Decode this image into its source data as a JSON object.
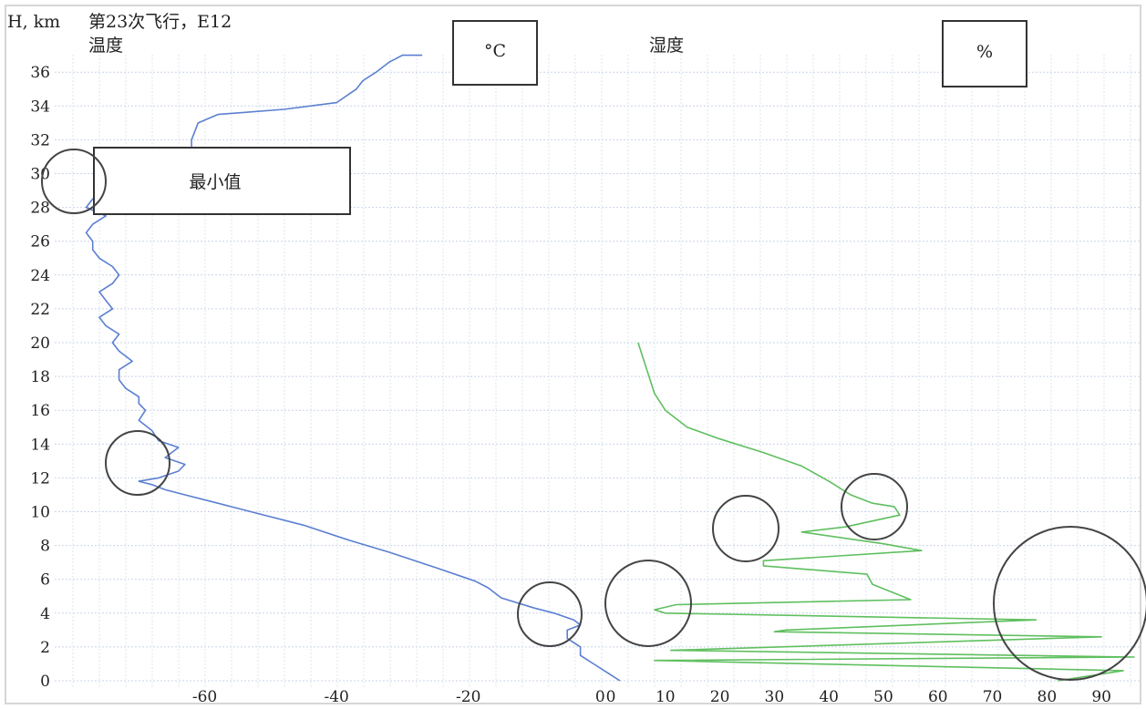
{
  "chart_data": {
    "type": "line",
    "title": "第23次飞行，E12",
    "ylabel": "H, km",
    "ylim": [
      0,
      37
    ],
    "yticks": [
      0,
      2,
      4,
      6,
      8,
      10,
      12,
      14,
      16,
      18,
      20,
      22,
      24,
      26,
      28,
      30,
      32,
      34,
      36
    ],
    "grid": true,
    "panels": [
      {
        "name": "温度",
        "unit_label": "°C",
        "xlim": [
          -80,
          3
        ],
        "xticks": [
          -60,
          -40,
          -20,
          0
        ],
        "series": [
          {
            "color": "#5b7fd1",
            "x": [
              3,
              1,
              -1,
              -3,
              -3,
              -5,
              -5,
              -3,
              -4,
              -7,
              -10,
              -15,
              -17,
              -19,
              -25,
              -32,
              -38,
              -45,
              -52,
              -58,
              -63,
              -66,
              -68,
              -70,
              -67,
              -64,
              -63,
              -66,
              -64,
              -67,
              -68,
              -70,
              -69,
              -70,
              -70,
              -72,
              -73,
              -73,
              -71,
              -73,
              -74,
              -73,
              -75,
              -76,
              -74,
              -75,
              -76,
              -74,
              -73,
              -74,
              -76,
              -77,
              -77,
              -78,
              -77,
              -75,
              -78,
              -77,
              -75,
              -73,
              -69,
              -62,
              -62,
              -62,
              -61,
              -58,
              -48,
              -40,
              -37,
              -36,
              -34,
              -33,
              -32,
              -31,
              -30,
              -27
            ],
            "y": [
              0,
              0.5,
              1,
              1.5,
              2,
              2.5,
              3,
              3.3,
              3.6,
              4.0,
              4.3,
              4.9,
              5.5,
              5.9,
              6.7,
              7.6,
              8.3,
              9.2,
              9.9,
              10.5,
              11.0,
              11.3,
              11.6,
              11.8,
              12.0,
              12.4,
              12.8,
              13.2,
              13.8,
              14.2,
              14.8,
              15.4,
              16.0,
              16.4,
              16.8,
              17.3,
              17.8,
              18.4,
              18.9,
              19.5,
              20.0,
              20.5,
              21.0,
              21.5,
              22.0,
              22.5,
              23.0,
              23.5,
              24.0,
              24.5,
              25.0,
              25.5,
              26.0,
              26.5,
              27.0,
              27.5,
              28.0,
              28.5,
              28.9,
              29.1,
              29.1,
              29.3,
              31.0,
              32.0,
              33.0,
              33.5,
              33.8,
              34.2,
              35.0,
              35.5,
              36.0,
              36.3,
              36.6,
              36.8,
              37.0,
              37.0
            ]
          }
        ]
      },
      {
        "name": "湿度",
        "unit_label": "%",
        "xlim": [
          0,
          97
        ],
        "xticks": [
          0,
          10,
          20,
          30,
          40,
          50,
          60,
          70,
          80,
          90
        ],
        "series": [
          {
            "color": "#5fbf5f",
            "x": [
              5,
              6,
              7,
              8,
              10,
              14,
              20,
              28,
              35,
              40,
              44,
              48,
              52,
              53,
              43,
              35,
              50,
              57,
              28,
              28,
              47,
              48,
              55,
              12,
              8,
              10,
              78,
              32,
              30,
              90,
              11,
              96,
              8,
              94,
              82
            ],
            "y": [
              20,
              19,
              18,
              17,
              16,
              15,
              14.3,
              13.5,
              12.7,
              11.8,
              11.0,
              10.5,
              10.3,
              9.8,
              9.1,
              8.8,
              8.1,
              7.7,
              7.1,
              6.8,
              6.3,
              5.7,
              4.8,
              4.5,
              4.2,
              4.0,
              3.6,
              3.0,
              2.9,
              2.6,
              1.8,
              1.4,
              1.2,
              0.6,
              0.0
            ]
          }
        ]
      }
    ],
    "annotations": [
      "最小值"
    ]
  }
}
